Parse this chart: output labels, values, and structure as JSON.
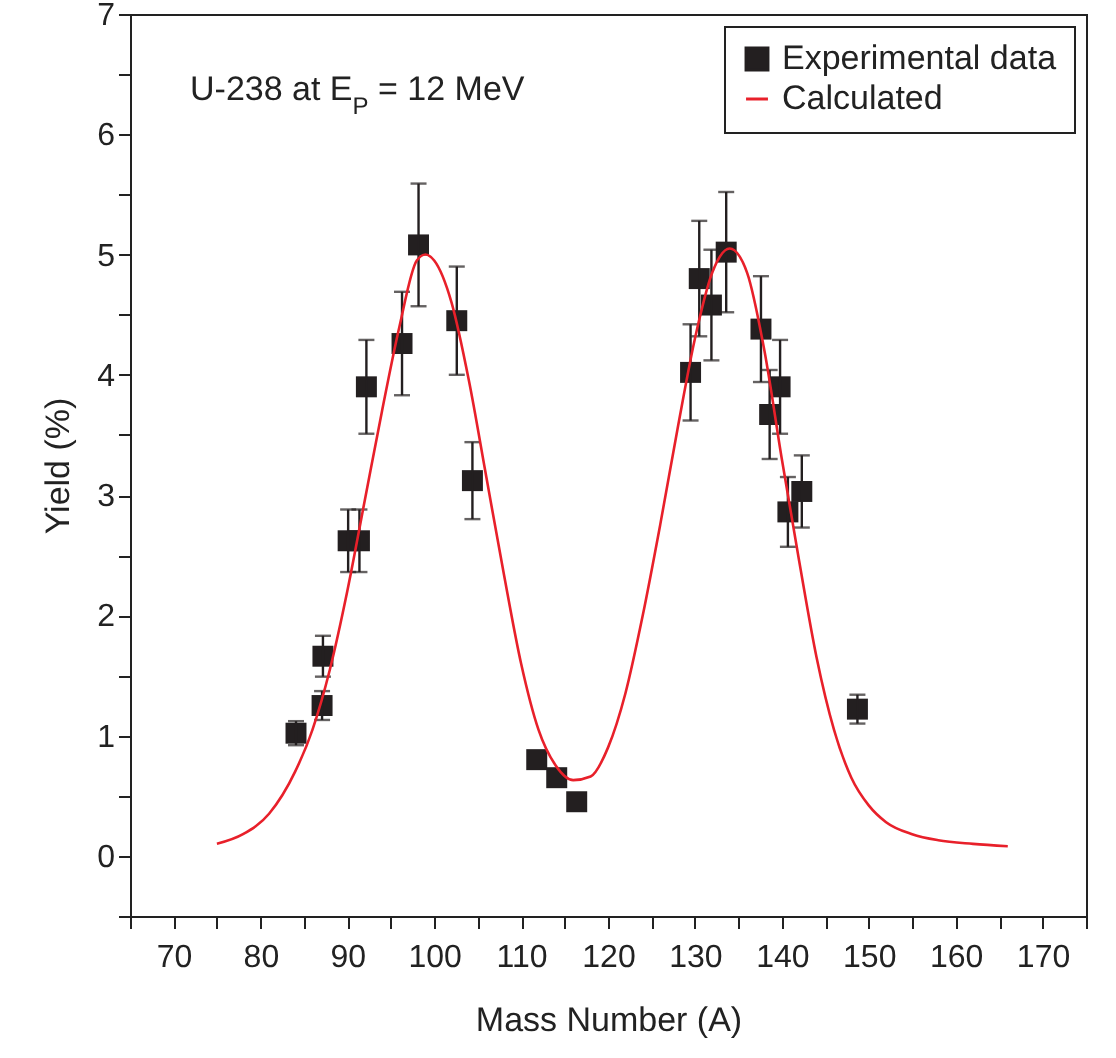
{
  "chart_data": {
    "type": "scatter",
    "xlabel": "Mass Number (A)",
    "ylabel": "Yield (%)",
    "annotations": [
      "U-238 at E$_{P}$ = 12 MeV"
    ],
    "xlim": [
      65,
      175
    ],
    "ylim": [
      -0.5,
      7
    ],
    "xticks": [
      {
        "value": 65,
        "label": null
      },
      70,
      {
        "value": 75,
        "label": null
      },
      80,
      {
        "value": 85,
        "label": null
      },
      90,
      {
        "value": 95,
        "label": null
      },
      100,
      {
        "value": 105,
        "label": null
      },
      110,
      {
        "value": 115,
        "label": null
      },
      120,
      {
        "value": 125,
        "label": null
      },
      130,
      {
        "value": 135,
        "label": null
      },
      140,
      {
        "value": 145,
        "label": null
      },
      150,
      {
        "value": 155,
        "label": null
      },
      160,
      {
        "value": 165,
        "label": null
      },
      170,
      {
        "value": 175,
        "label": null
      }
    ],
    "yticks": [
      {
        "value": -0.5,
        "label": null
      },
      0,
      {
        "value": 0.5,
        "label": null
      },
      1,
      {
        "value": 1.5,
        "label": null
      },
      2,
      {
        "value": 2.5,
        "label": null
      },
      3,
      {
        "value": 3.5,
        "label": null
      },
      4,
      {
        "value": 4.5,
        "label": null
      },
      5,
      {
        "value": 5.5,
        "label": null
      },
      6,
      {
        "value": 6.5,
        "label": null
      },
      7
    ],
    "legend": "top right",
    "series": [
      {
        "name": "Experimental data",
        "type": "scatter",
        "marker": "square",
        "color": "#231f20",
        "x": [
          84.1,
          87.1,
          87.2,
          90.1,
          91.4,
          92.2,
          96.3,
          98.2,
          102.6,
          104.4,
          111.8,
          114.1,
          116.4,
          129.5,
          130.5,
          131.9,
          133.6,
          137.6,
          138.6,
          139.8,
          140.7,
          142.3,
          148.7
        ],
        "values": [
          1.02,
          1.25,
          1.66,
          2.62,
          2.62,
          3.9,
          4.26,
          5.08,
          4.45,
          3.12,
          0.8,
          0.65,
          0.45,
          4.02,
          4.8,
          4.58,
          5.02,
          4.38,
          3.67,
          3.9,
          2.86,
          3.03,
          1.22
        ],
        "errors": [
          0.1,
          0.12,
          0.17,
          0.26,
          0.26,
          0.39,
          0.43,
          0.51,
          0.45,
          0.32,
          null,
          null,
          null,
          0.4,
          0.48,
          0.46,
          0.5,
          0.44,
          0.37,
          0.39,
          0.29,
          0.3,
          0.12
        ]
      },
      {
        "name": "Calculated",
        "type": "line",
        "marker": "none",
        "line_style": "solid",
        "color": "#e8202a",
        "x": [
          75,
          78,
          81,
          84,
          86,
          88,
          90,
          92,
          94,
          96,
          98,
          99,
          100,
          102,
          104,
          106,
          108,
          110,
          112,
          114,
          116,
          118,
          120,
          122,
          124,
          126,
          128,
          130,
          132,
          134,
          136,
          138,
          140,
          142,
          144,
          146,
          148,
          150,
          152,
          155,
          158,
          162,
          166
        ],
        "values": [
          0.1,
          0.18,
          0.35,
          0.7,
          1.05,
          1.55,
          2.2,
          2.95,
          3.7,
          4.4,
          4.95,
          5.0,
          4.95,
          4.6,
          3.95,
          3.15,
          2.35,
          1.6,
          1.05,
          0.75,
          0.63,
          0.66,
          0.9,
          1.35,
          2.0,
          2.75,
          3.55,
          4.3,
          4.85,
          5.05,
          4.85,
          4.2,
          3.3,
          2.45,
          1.65,
          1.05,
          0.65,
          0.42,
          0.28,
          0.18,
          0.13,
          0.1,
          0.08
        ]
      }
    ]
  }
}
